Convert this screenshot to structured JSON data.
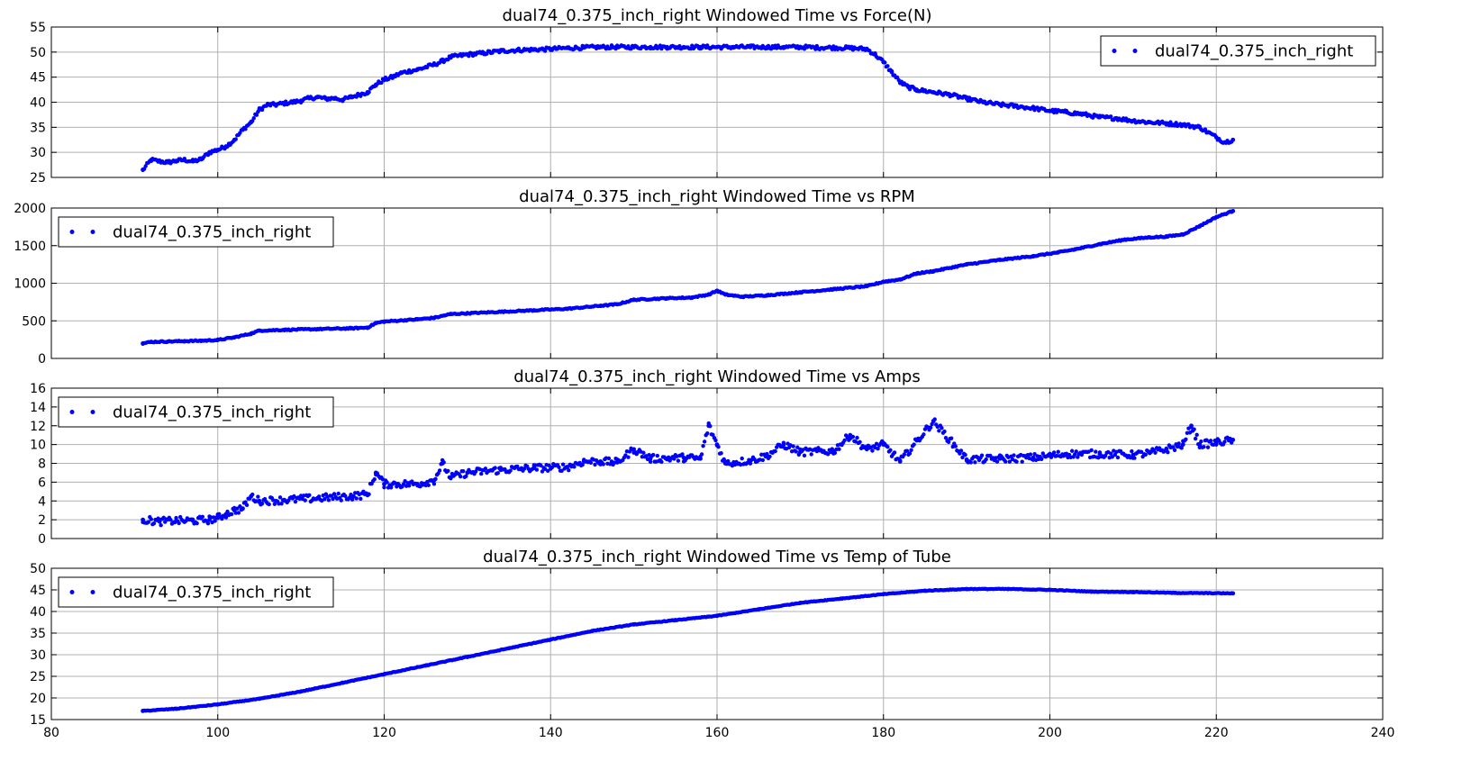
{
  "chart_data": [
    {
      "type": "scatter",
      "title": "dual74_0.375_inch_right Windowed Time vs Force(N)",
      "xlabel": "",
      "ylabel": "",
      "xlim": [
        80,
        240
      ],
      "ylim": [
        25,
        55
      ],
      "yticks": [
        25,
        30,
        35,
        40,
        45,
        50,
        55
      ],
      "grid": true,
      "legend": "top-right",
      "series": [
        {
          "name": "dual74_0.375_inch_right",
          "color": "#0000ff",
          "x": [
            91,
            92,
            93,
            94,
            95,
            96,
            97,
            98,
            99,
            100,
            101,
            102,
            103,
            104,
            105,
            106,
            107,
            108,
            109,
            110,
            111,
            112,
            113,
            114,
            115,
            116,
            117,
            118,
            119,
            120,
            121,
            122,
            123,
            124,
            125,
            126,
            127,
            128,
            130,
            132,
            134,
            136,
            138,
            140,
            142,
            144,
            146,
            148,
            150,
            152,
            154,
            156,
            158,
            160,
            162,
            164,
            166,
            168,
            170,
            172,
            174,
            176,
            178,
            179,
            180,
            181,
            182,
            183,
            184,
            186,
            188,
            190,
            192,
            194,
            196,
            198,
            200,
            202,
            204,
            206,
            208,
            210,
            212,
            214,
            216,
            218,
            219,
            220,
            221,
            222
          ],
          "y": [
            26.5,
            28.5,
            28.2,
            28.0,
            28.3,
            28.5,
            28.2,
            28.6,
            30.0,
            30.5,
            31.2,
            32.5,
            34.5,
            36.0,
            38.5,
            39.5,
            39.5,
            39.8,
            40.0,
            40.3,
            40.8,
            41.0,
            40.7,
            40.8,
            40.5,
            41.0,
            41.5,
            42.0,
            43.5,
            44.5,
            45.0,
            45.8,
            46.2,
            46.5,
            47.0,
            47.5,
            48.2,
            49.0,
            49.5,
            49.8,
            50.2,
            50.4,
            50.5,
            50.6,
            50.8,
            50.9,
            51.0,
            51.0,
            51.0,
            51.0,
            51.0,
            51.0,
            51.0,
            51.0,
            51.0,
            51.0,
            51.0,
            51.0,
            51.0,
            50.9,
            50.9,
            50.8,
            50.6,
            49.5,
            48.0,
            46.0,
            44.0,
            43.0,
            42.5,
            42.0,
            41.5,
            40.7,
            40.0,
            39.5,
            39.2,
            38.8,
            38.3,
            38.0,
            37.6,
            37.0,
            36.8,
            36.3,
            36.0,
            35.8,
            35.5,
            35.0,
            34.0,
            33.0,
            32.0,
            32.5
          ]
        }
      ]
    },
    {
      "type": "scatter",
      "title": "dual74_0.375_inch_right Windowed Time vs RPM",
      "xlabel": "",
      "ylabel": "",
      "xlim": [
        80,
        240
      ],
      "ylim": [
        0,
        2000
      ],
      "yticks": [
        0,
        500,
        1000,
        1500,
        2000
      ],
      "grid": true,
      "legend": "top-left",
      "series": [
        {
          "name": "dual74_0.375_inch_right",
          "color": "#0000ff",
          "x": [
            91,
            92,
            94,
            96,
            98,
            100,
            102,
            104,
            105,
            108,
            112,
            116,
            118,
            119,
            120,
            124,
            126,
            128,
            130,
            134,
            138,
            142,
            146,
            148,
            150,
            154,
            157,
            159,
            160,
            161,
            163,
            166,
            170,
            174,
            178,
            180,
            182,
            184,
            186,
            190,
            194,
            198,
            201,
            203,
            206,
            209,
            212,
            214,
            216,
            218,
            220,
            222
          ],
          "y": [
            200,
            220,
            225,
            230,
            235,
            245,
            280,
            330,
            370,
            380,
            390,
            400,
            410,
            470,
            490,
            520,
            540,
            590,
            600,
            620,
            640,
            660,
            700,
            720,
            780,
            800,
            810,
            850,
            900,
            850,
            820,
            840,
            880,
            920,
            960,
            1020,
            1050,
            1130,
            1160,
            1250,
            1310,
            1360,
            1410,
            1450,
            1520,
            1580,
            1610,
            1620,
            1650,
            1760,
            1880,
            1960
          ]
        }
      ]
    },
    {
      "type": "scatter",
      "title": "dual74_0.375_inch_right Windowed Time vs Amps",
      "xlabel": "",
      "ylabel": "",
      "xlim": [
        80,
        240
      ],
      "ylim": [
        0,
        16
      ],
      "yticks": [
        0,
        2,
        4,
        6,
        8,
        10,
        12,
        14,
        16
      ],
      "grid": true,
      "legend": "top-left",
      "series": [
        {
          "name": "dual74_0.375_inch_right",
          "color": "#0000ff",
          "x": [
            91,
            93,
            95,
            97,
            99,
            100,
            101,
            102,
            103,
            104,
            105,
            108,
            112,
            116,
            118,
            119,
            120,
            124,
            126,
            127,
            128,
            130,
            134,
            138,
            142,
            144,
            146,
            148,
            150,
            152,
            156,
            158,
            159,
            160,
            161,
            164,
            166,
            168,
            170,
            174,
            176,
            178,
            180,
            182,
            186,
            190,
            194,
            198,
            200,
            202,
            206,
            210,
            212,
            214,
            216,
            217,
            218,
            220,
            222
          ],
          "y": [
            2.0,
            1.8,
            1.9,
            1.9,
            2.0,
            2.2,
            2.6,
            3.0,
            3.2,
            4.5,
            4.0,
            4.1,
            4.3,
            4.5,
            4.7,
            7.0,
            5.8,
            5.8,
            6.2,
            8.0,
            6.5,
            7.0,
            7.3,
            7.5,
            7.6,
            8.2,
            8.2,
            8.1,
            9.5,
            8.5,
            8.6,
            8.5,
            12.0,
            10.0,
            8.0,
            8.3,
            8.8,
            10.0,
            9.2,
            9.3,
            11.0,
            9.5,
            10.0,
            8.2,
            12.5,
            8.4,
            8.5,
            8.6,
            8.8,
            9.0,
            9.0,
            8.9,
            9.1,
            9.5,
            10.0,
            12.0,
            10.0,
            10.2,
            10.5
          ]
        }
      ]
    },
    {
      "type": "scatter",
      "title": "dual74_0.375_inch_right Windowed Time vs Temp of Tube",
      "xlabel": "",
      "ylabel": "",
      "xlim": [
        80,
        240
      ],
      "ylim": [
        15,
        50
      ],
      "yticks": [
        15,
        20,
        25,
        30,
        35,
        40,
        45,
        50
      ],
      "xticks": [
        80,
        100,
        120,
        140,
        160,
        180,
        200,
        220,
        240
      ],
      "grid": true,
      "legend": "top-left",
      "series": [
        {
          "name": "dual74_0.375_inch_right",
          "color": "#0000ff",
          "x": [
            91,
            95,
            100,
            105,
            110,
            115,
            120,
            125,
            130,
            135,
            140,
            145,
            150,
            155,
            160,
            165,
            170,
            175,
            180,
            185,
            190,
            195,
            200,
            205,
            210,
            215,
            222
          ],
          "y": [
            17.0,
            17.5,
            18.5,
            19.8,
            21.5,
            23.5,
            25.5,
            27.5,
            29.5,
            31.5,
            33.5,
            35.5,
            37.0,
            38.0,
            39.0,
            40.5,
            42.0,
            43.0,
            44.0,
            44.8,
            45.2,
            45.2,
            45.0,
            44.6,
            44.5,
            44.3,
            44.2
          ]
        }
      ]
    }
  ]
}
